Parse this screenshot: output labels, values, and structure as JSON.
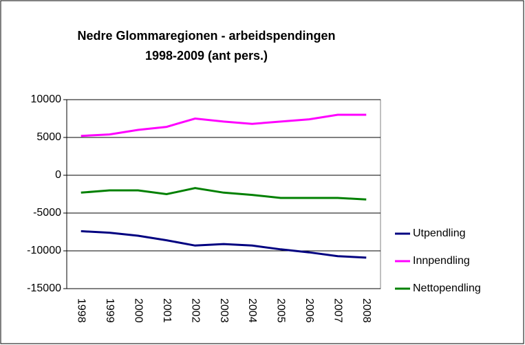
{
  "chart_data": {
    "type": "line",
    "title": "Nedre Glommaregionen - arbeidspendingen 1998-2009 (ant pers.)",
    "categories": [
      "1998",
      "1999",
      "2000",
      "2001",
      "2002",
      "2003",
      "2004",
      "2005",
      "2006",
      "2007",
      "2008"
    ],
    "series": [
      {
        "name": "Utpendling",
        "color": "#000080",
        "values": [
          -7400,
          -7600,
          -8000,
          -8600,
          -9300,
          -9100,
          -9300,
          -9800,
          -10200,
          -10700,
          -10900
        ]
      },
      {
        "name": "Innpendling",
        "color": "#ff00ff",
        "values": [
          5200,
          5400,
          6000,
          6400,
          7500,
          7100,
          6800,
          7100,
          7400,
          8000,
          8000
        ]
      },
      {
        "name": "Nettopendling",
        "color": "#008000",
        "values": [
          -2300,
          -2000,
          -2000,
          -2500,
          -1700,
          -2300,
          -2600,
          -3000,
          -3000,
          -3000,
          -3200
        ]
      }
    ],
    "ylim": [
      -15000,
      10000
    ],
    "yticks": [
      -15000,
      -10000,
      -5000,
      0,
      5000,
      10000
    ],
    "grid": true,
    "legend": "right"
  }
}
